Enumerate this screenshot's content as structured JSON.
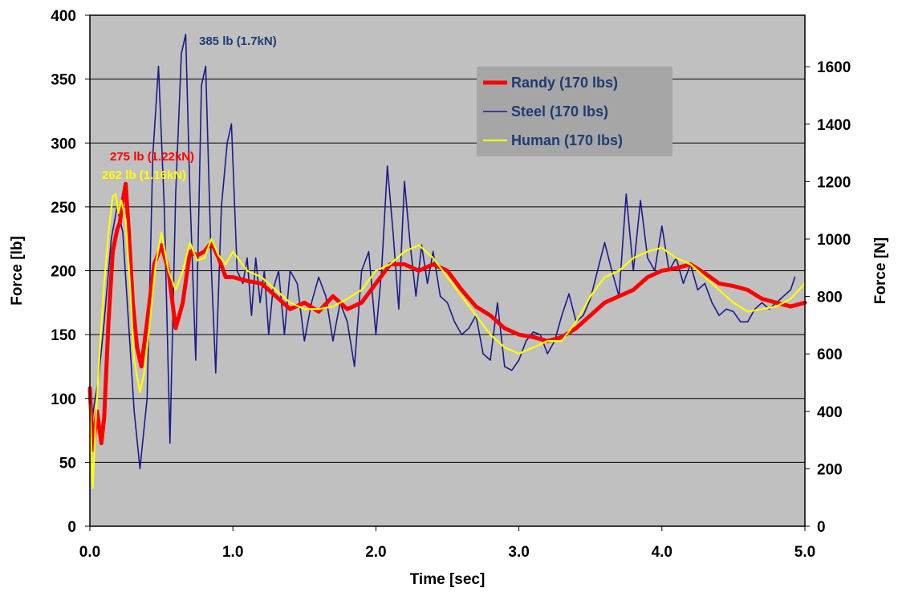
{
  "chart_data": {
    "type": "line",
    "title": "",
    "xlabel": "Time [sec]",
    "ylabel": "Force [lb]",
    "y2label": "Force [N]",
    "xlim": [
      0,
      5
    ],
    "ylim": [
      0,
      400
    ],
    "y2lim": [
      0,
      1779.3
    ],
    "x_ticks": [
      "0.0",
      "1.0",
      "2.0",
      "3.0",
      "4.0",
      "5.0"
    ],
    "y_ticks": [
      "0",
      "50",
      "100",
      "150",
      "200",
      "250",
      "300",
      "350",
      "400"
    ],
    "y2_ticks": [
      "0",
      "200",
      "400",
      "600",
      "800",
      "1000",
      "1200",
      "1400",
      "1600"
    ],
    "grid": "horizontal",
    "plot_background": "#c0c0c0",
    "legend_position": "top-right",
    "series": [
      {
        "name": "Randy (170 lbs)",
        "color": "#ff0000",
        "x": [
          0,
          0.02,
          0.05,
          0.08,
          0.1,
          0.13,
          0.16,
          0.19,
          0.21,
          0.23,
          0.25,
          0.27,
          0.3,
          0.33,
          0.36,
          0.4,
          0.45,
          0.5,
          0.55,
          0.6,
          0.65,
          0.7,
          0.75,
          0.8,
          0.85,
          0.9,
          0.95,
          1.0,
          1.1,
          1.2,
          1.3,
          1.4,
          1.5,
          1.6,
          1.7,
          1.8,
          1.9,
          2.0,
          2.1,
          2.2,
          2.3,
          2.4,
          2.5,
          2.6,
          2.7,
          2.8,
          2.9,
          3.0,
          3.1,
          3.2,
          3.3,
          3.4,
          3.5,
          3.6,
          3.7,
          3.8,
          3.9,
          4.0,
          4.1,
          4.2,
          4.3,
          4.4,
          4.5,
          4.6,
          4.7,
          4.8,
          4.9,
          5.0
        ],
        "y": [
          108,
          60,
          90,
          65,
          85,
          160,
          215,
          232,
          238,
          255,
          268,
          235,
          175,
          140,
          125,
          160,
          205,
          220,
          200,
          155,
          175,
          215,
          212,
          215,
          222,
          210,
          195,
          195,
          192,
          190,
          180,
          170,
          175,
          168,
          180,
          170,
          175,
          190,
          205,
          205,
          200,
          205,
          200,
          185,
          172,
          165,
          155,
          150,
          148,
          145,
          148,
          155,
          165,
          175,
          180,
          185,
          195,
          200,
          202,
          205,
          198,
          190,
          188,
          185,
          178,
          175,
          172,
          175
        ]
      },
      {
        "name": "Steel (170 lbs)",
        "color": "#1a1a8c",
        "x": [
          0,
          0.03,
          0.06,
          0.1,
          0.15,
          0.19,
          0.23,
          0.27,
          0.31,
          0.35,
          0.4,
          0.44,
          0.48,
          0.52,
          0.56,
          0.6,
          0.64,
          0.67,
          0.7,
          0.74,
          0.78,
          0.81,
          0.85,
          0.88,
          0.92,
          0.96,
          0.99,
          1.03,
          1.07,
          1.1,
          1.13,
          1.16,
          1.19,
          1.22,
          1.25,
          1.28,
          1.32,
          1.36,
          1.4,
          1.45,
          1.5,
          1.55,
          1.6,
          1.65,
          1.7,
          1.75,
          1.8,
          1.85,
          1.9,
          1.95,
          2.0,
          2.04,
          2.08,
          2.12,
          2.16,
          2.2,
          2.24,
          2.28,
          2.32,
          2.36,
          2.4,
          2.45,
          2.5,
          2.55,
          2.6,
          2.65,
          2.7,
          2.75,
          2.8,
          2.85,
          2.9,
          2.95,
          3.0,
          3.05,
          3.1,
          3.15,
          3.2,
          3.25,
          3.3,
          3.35,
          3.4,
          3.45,
          3.5,
          3.55,
          3.6,
          3.65,
          3.7,
          3.75,
          3.8,
          3.85,
          3.9,
          3.95,
          4.0,
          4.05,
          4.1,
          4.15,
          4.2,
          4.25,
          4.3,
          4.35,
          4.4,
          4.45,
          4.5,
          4.55,
          4.6,
          4.65,
          4.7,
          4.75,
          4.8,
          4.85,
          4.9,
          4.93
        ],
        "y": [
          70,
          95,
          115,
          160,
          225,
          250,
          230,
          160,
          90,
          45,
          100,
          290,
          360,
          250,
          65,
          260,
          370,
          385,
          260,
          130,
          345,
          360,
          200,
          120,
          250,
          300,
          315,
          200,
          190,
          210,
          165,
          210,
          175,
          200,
          150,
          185,
          200,
          150,
          200,
          190,
          145,
          175,
          195,
          180,
          145,
          175,
          160,
          125,
          200,
          215,
          150,
          200,
          282,
          230,
          170,
          270,
          220,
          180,
          220,
          190,
          215,
          180,
          175,
          160,
          150,
          155,
          165,
          135,
          130,
          175,
          125,
          122,
          130,
          145,
          152,
          150,
          135,
          145,
          165,
          182,
          160,
          165,
          178,
          200,
          222,
          200,
          180,
          260,
          200,
          255,
          210,
          200,
          235,
          200,
          210,
          190,
          205,
          185,
          190,
          175,
          165,
          170,
          168,
          160,
          160,
          170,
          175,
          170,
          175,
          180,
          185,
          195
        ]
      },
      {
        "name": "Human (170 lbs)",
        "color": "#ffff00",
        "x": [
          0,
          0.02,
          0.04,
          0.07,
          0.1,
          0.13,
          0.16,
          0.18,
          0.2,
          0.22,
          0.25,
          0.28,
          0.31,
          0.35,
          0.38,
          0.42,
          0.46,
          0.5,
          0.55,
          0.6,
          0.65,
          0.7,
          0.75,
          0.8,
          0.85,
          0.9,
          0.95,
          1.0,
          1.1,
          1.2,
          1.3,
          1.4,
          1.5,
          1.6,
          1.7,
          1.8,
          1.9,
          2.0,
          2.1,
          2.2,
          2.3,
          2.4,
          2.5,
          2.6,
          2.7,
          2.8,
          2.9,
          3.0,
          3.1,
          3.2,
          3.3,
          3.4,
          3.5,
          3.6,
          3.7,
          3.8,
          3.9,
          4.0,
          4.1,
          4.2,
          4.3,
          4.4,
          4.5,
          4.6,
          4.7,
          4.8,
          4.9,
          5.0
        ],
        "y": [
          95,
          30,
          80,
          140,
          190,
          230,
          258,
          260,
          245,
          255,
          240,
          190,
          130,
          105,
          120,
          160,
          205,
          230,
          200,
          185,
          200,
          222,
          208,
          210,
          225,
          212,
          205,
          215,
          200,
          195,
          185,
          175,
          170,
          170,
          172,
          178,
          185,
          200,
          205,
          215,
          220,
          210,
          195,
          180,
          165,
          150,
          140,
          135,
          140,
          145,
          145,
          160,
          180,
          195,
          200,
          210,
          215,
          218,
          210,
          205,
          195,
          185,
          175,
          168,
          170,
          172,
          178,
          190
        ]
      }
    ],
    "annotations": [
      {
        "text": "385 lb (1.7kN)",
        "x": 0.67,
        "y": 385,
        "color": "#1f3b73"
      },
      {
        "text": "275 lb (1.22kN)",
        "x": 0.25,
        "y": 275,
        "color": "#ff0000"
      },
      {
        "text": "262 lb (1.16kN)",
        "x": 0.19,
        "y": 262,
        "color": "#ffff00"
      }
    ]
  }
}
